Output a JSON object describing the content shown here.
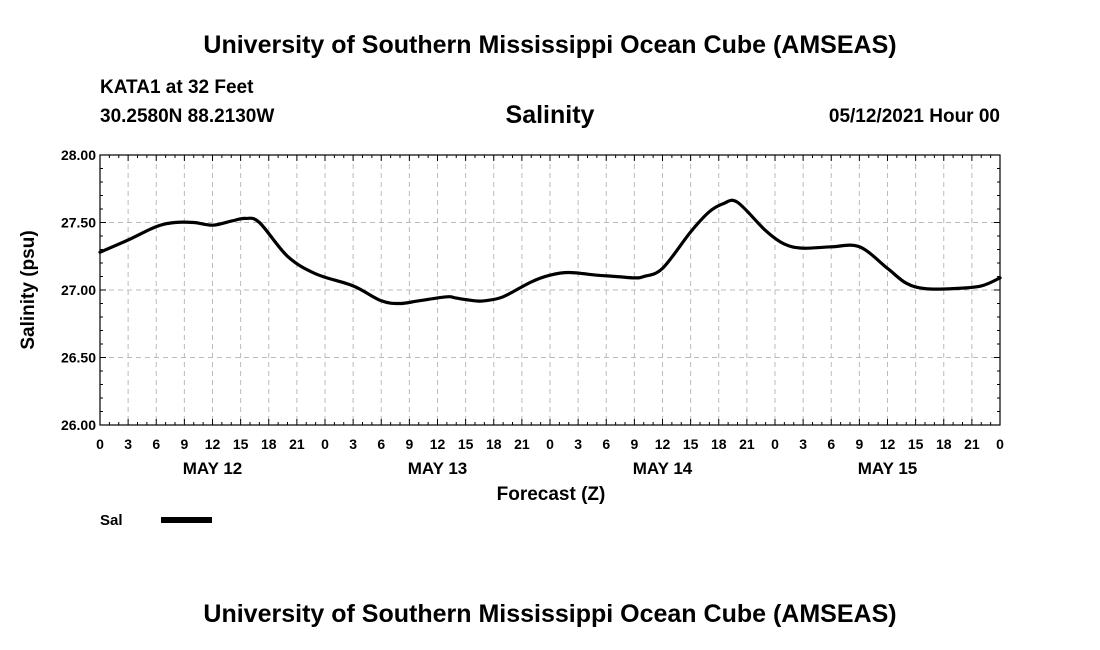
{
  "header": {
    "title": "University of Southern Mississippi Ocean Cube (AMSEAS)",
    "station": "KATA1 at 32 Feet",
    "coords": "30.2580N  88.2130W",
    "variable": "Salinity",
    "datetime": "05/12/2021 Hour 00"
  },
  "footer": {
    "title": "University of Southern Mississippi Ocean Cube (AMSEAS)"
  },
  "colors": {
    "line": "#000000",
    "grid": "#bbbbbb"
  },
  "chart_data": {
    "type": "line",
    "title": "Salinity",
    "xlabel": "Forecast (Z)",
    "ylabel": "Salinity (psu)",
    "ylim": [
      26.0,
      28.0
    ],
    "y_ticks": [
      "26.00",
      "26.50",
      "27.00",
      "27.50",
      "28.00"
    ],
    "x_range_hours": [
      0,
      96
    ],
    "x_tick_labels": [
      "0",
      "3",
      "6",
      "9",
      "12",
      "15",
      "18",
      "21",
      "0",
      "3",
      "6",
      "9",
      "12",
      "15",
      "18",
      "21",
      "0",
      "3",
      "6",
      "9",
      "12",
      "15",
      "18",
      "21",
      "0",
      "3",
      "6",
      "9",
      "12",
      "15",
      "18",
      "21",
      "0"
    ],
    "day_labels": [
      {
        "label": "MAY 12",
        "hour": 12
      },
      {
        "label": "MAY 13",
        "hour": 36
      },
      {
        "label": "MAY 14",
        "hour": 60
      },
      {
        "label": "MAY 15",
        "hour": 84
      }
    ],
    "grid": true,
    "legend": {
      "placement": "bottom-left",
      "entries": [
        "Sal"
      ]
    },
    "series": [
      {
        "name": "Sal",
        "x": [
          0,
          3,
          6,
          8,
          10,
          12,
          14,
          15.5,
          17,
          20,
          23,
          27,
          30,
          32,
          34,
          37,
          38,
          40,
          41,
          43,
          46,
          48,
          50,
          53,
          55,
          57,
          58,
          60,
          63,
          65,
          66.5,
          68,
          71,
          73,
          75,
          78,
          81,
          84,
          86,
          88,
          91,
          94,
          96
        ],
        "y": [
          27.28,
          27.37,
          27.47,
          27.5,
          27.5,
          27.48,
          27.51,
          27.53,
          27.5,
          27.25,
          27.12,
          27.03,
          26.92,
          26.9,
          26.92,
          26.95,
          26.94,
          26.92,
          26.92,
          26.95,
          27.06,
          27.11,
          27.13,
          27.11,
          27.1,
          27.09,
          27.1,
          27.16,
          27.43,
          27.58,
          27.64,
          27.65,
          27.44,
          27.34,
          27.31,
          27.32,
          27.32,
          27.16,
          27.05,
          27.01,
          27.01,
          27.03,
          27.09
        ]
      }
    ]
  }
}
